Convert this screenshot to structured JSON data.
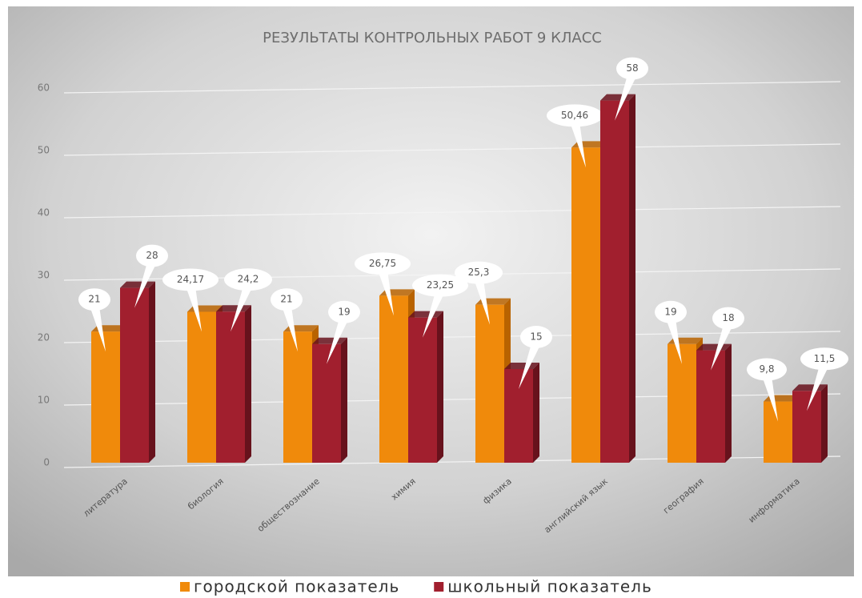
{
  "chart_data": {
    "type": "bar3d",
    "title": "РЕЗУЛЬТАТЫ КОНТРОЛЬНЫХ РАБОТ 9 КЛАСС",
    "categories": [
      "литература",
      "биология",
      "обществознание",
      "химия",
      "физика",
      "английский язык",
      "география",
      "информатика"
    ],
    "series": [
      {
        "name": "городской показатель",
        "color": "#f08a0b",
        "side": "#b86300",
        "values": [
          21,
          24.17,
          21,
          26.75,
          25.3,
          50.46,
          19,
          9.8
        ],
        "value_labels": [
          "21",
          "24,17",
          "21",
          "26,75",
          "25,3",
          "50,46",
          "19",
          "9,8"
        ]
      },
      {
        "name": "школьный показатель",
        "color": "#a11f2e",
        "side": "#67121c",
        "values": [
          28,
          24.2,
          19,
          23.25,
          15,
          58,
          18,
          11.5
        ],
        "value_labels": [
          "28",
          "24,2",
          "19",
          "23,25",
          "15",
          "58",
          "18",
          "11,5"
        ]
      }
    ],
    "ylim": [
      0,
      60
    ],
    "yticks": [
      0,
      10,
      20,
      30,
      40,
      50,
      60
    ],
    "grid": true,
    "legend": "bottom"
  }
}
